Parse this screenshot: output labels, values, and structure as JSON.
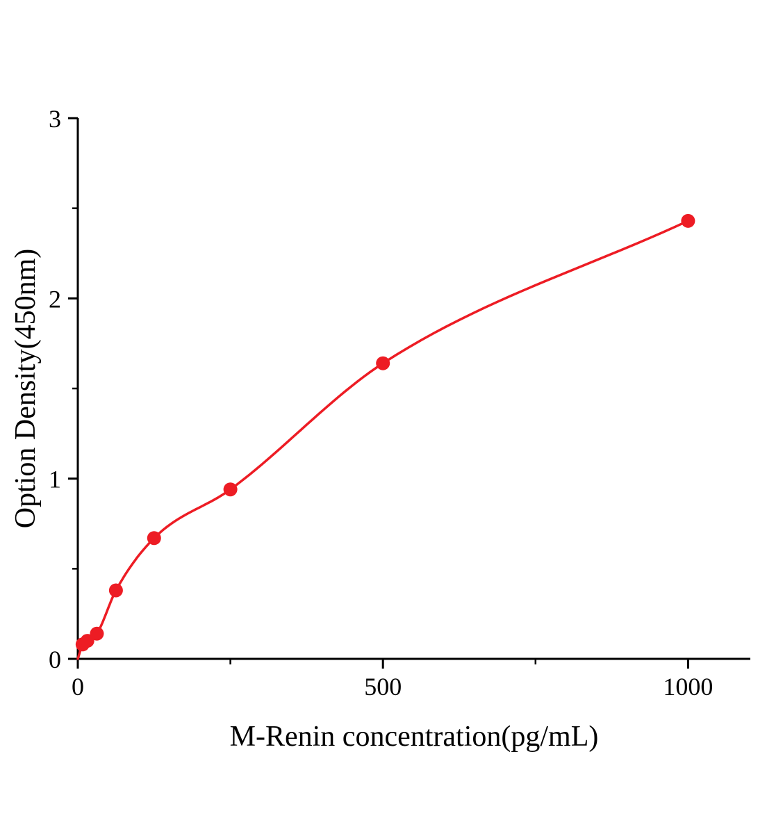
{
  "figure": {
    "background": "#ffffff"
  },
  "chart_data": {
    "type": "scatter",
    "title": "",
    "xlabel": "M-Renin concentration(pg/mL)",
    "ylabel": "Option Density(450nm)",
    "x": [
      7.8,
      15.6,
      31.25,
      62.5,
      125,
      250,
      500,
      1000
    ],
    "y": [
      0.08,
      0.1,
      0.14,
      0.38,
      0.67,
      0.94,
      1.64,
      2.43
    ],
    "curve": {
      "style": "smooth-fit",
      "start": {
        "x": 0,
        "y": 0
      }
    },
    "xlim": [
      0,
      1102
    ],
    "ylim": [
      0,
      3
    ],
    "x_ticks": [
      0,
      500,
      1000
    ],
    "x_minor_ticks": [
      250,
      750
    ],
    "y_ticks": [
      0,
      1,
      2,
      3
    ],
    "y_minor_ticks": [
      0.5,
      1.5,
      2.5
    ],
    "grid": false,
    "legend": false,
    "colors": {
      "curve": "#ed1c24",
      "marker": "#ed1c24",
      "axis": "#000000",
      "text": "#000000"
    },
    "marker": {
      "shape": "circle",
      "radius": 10
    }
  }
}
